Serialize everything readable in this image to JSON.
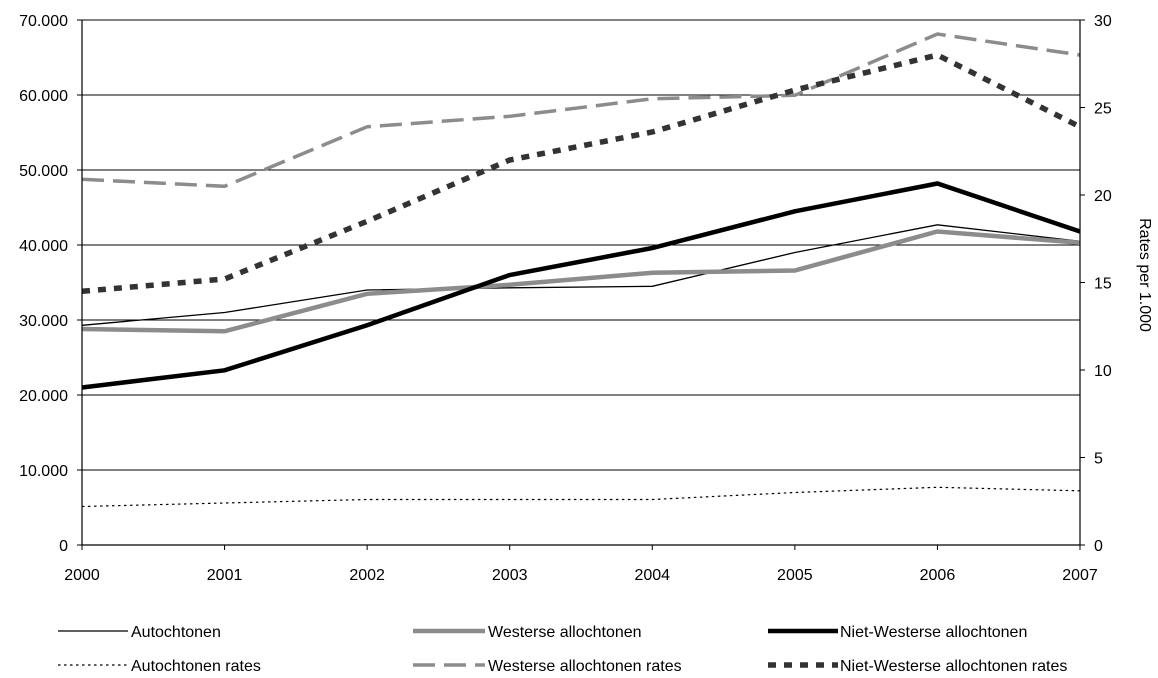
{
  "chart_data": {
    "type": "line",
    "x": [
      "2000",
      "2001",
      "2002",
      "2003",
      "2004",
      "2005",
      "2006",
      "2007"
    ],
    "y_left": {
      "ylim": [
        0,
        70000
      ],
      "ticks": [
        0,
        10000,
        20000,
        30000,
        40000,
        50000,
        60000,
        70000
      ],
      "tick_labels": [
        "0",
        "10.000",
        "20.000",
        "30.000",
        "40.000",
        "50.000",
        "60.000",
        "70.000"
      ]
    },
    "y_right": {
      "label": "Rates per 1.000",
      "ylim": [
        0,
        30
      ],
      "ticks": [
        0,
        5,
        10,
        15,
        20,
        25,
        30
      ],
      "tick_labels": [
        "0",
        "5",
        "10",
        "15",
        "20",
        "25",
        "30"
      ]
    },
    "grid": "horizontal",
    "legend_position": "bottom",
    "series": [
      {
        "name": "Autochtonen",
        "axis": "left",
        "style": "thin-solid",
        "color": "#000000",
        "values": [
          29300,
          31000,
          34000,
          34300,
          34500,
          39000,
          42700,
          40500
        ]
      },
      {
        "name": "Westerse allochtonen",
        "axis": "left",
        "style": "thick-solid",
        "color": "#8c8c8c",
        "values": [
          28800,
          28500,
          33500,
          34700,
          36300,
          36600,
          41800,
          40300
        ]
      },
      {
        "name": "Niet-Westerse allochtonen",
        "axis": "left",
        "style": "thick-solid",
        "color": "#000000",
        "values": [
          21000,
          23300,
          29300,
          36000,
          39600,
          44500,
          48200,
          41800
        ]
      },
      {
        "name": "Autochtonen rates",
        "axis": "right",
        "style": "dotted",
        "color": "#000000",
        "values": [
          2.2,
          2.4,
          2.6,
          2.6,
          2.6,
          3.0,
          3.3,
          3.1
        ]
      },
      {
        "name": "Westerse allochtonen rates",
        "axis": "right",
        "style": "dashed",
        "color": "#8c8c8c",
        "values": [
          20.9,
          20.5,
          23.9,
          24.5,
          25.5,
          25.7,
          29.2,
          28.0
        ]
      },
      {
        "name": "Niet-Westerse allochtonen rates",
        "axis": "right",
        "style": "thick-dashed",
        "color": "#333333",
        "values": [
          14.5,
          15.2,
          18.5,
          22.0,
          23.6,
          26.0,
          28.0,
          23.9
        ]
      }
    ]
  }
}
